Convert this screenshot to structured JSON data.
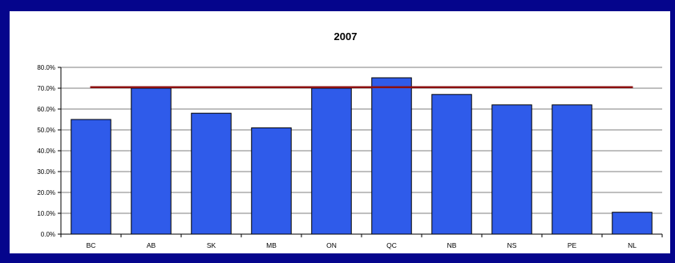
{
  "chart_data": {
    "type": "bar",
    "title": "2007",
    "xlabel": "",
    "ylabel": "",
    "categories": [
      "BC",
      "AB",
      "SK",
      "MB",
      "ON",
      "QC",
      "NB",
      "NS",
      "PE",
      "NL"
    ],
    "series": [
      {
        "values": [
          55.0,
          70.0,
          58.0,
          51.0,
          70.0,
          75.0,
          67.0,
          62.0,
          62.0,
          10.5
        ]
      }
    ],
    "reference_line": {
      "value": 70.5,
      "color": "#8b1010"
    },
    "ylim": [
      0,
      80
    ],
    "yticks": [
      0,
      10,
      20,
      30,
      40,
      50,
      60,
      70,
      80
    ],
    "ytick_labels": [
      "0.0%",
      "10.0%",
      "20.0%",
      "30.0%",
      "40.0%",
      "50.0%",
      "60.0%",
      "70.0%",
      "80.0%"
    ],
    "grid": true,
    "legend": "none",
    "colors": {
      "bar_fill": "#2f5bea",
      "bar_stroke": "#000000",
      "grid": "#7f7f7f",
      "background": "#ffffff",
      "slide_background": "#05058c"
    }
  }
}
